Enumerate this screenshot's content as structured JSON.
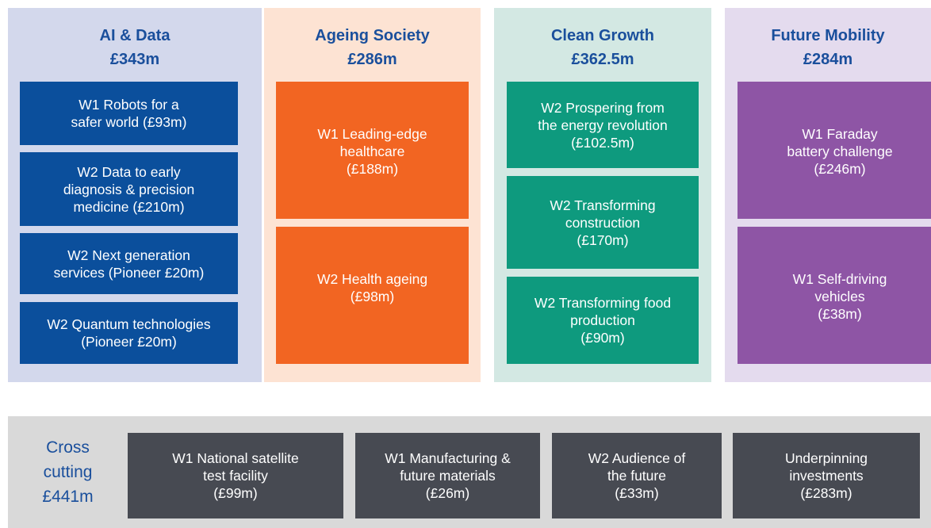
{
  "columns": [
    {
      "title": "AI & Data",
      "amount": "£343m",
      "boxes": [
        [
          "W1 Robots for a",
          "safer world (£93m)"
        ],
        [
          "W2 Data to early",
          "diagnosis & precision",
          "medicine (£210m)"
        ],
        [
          "W2 Next generation",
          "services (Pioneer £20m)"
        ],
        [
          "W2 Quantum technologies",
          "(Pioneer £20m)"
        ]
      ]
    },
    {
      "title": "Ageing Society",
      "amount": "£286m",
      "boxes": [
        [
          "W1 Leading-edge",
          "healthcare",
          "(£188m)"
        ],
        [
          "W2 Health ageing",
          "(£98m)"
        ]
      ]
    },
    {
      "title": "Clean Growth",
      "amount": "£362.5m",
      "boxes": [
        [
          "W2 Prospering from",
          "the energy revolution",
          "(£102.5m)"
        ],
        [
          "W2 Transforming",
          "construction",
          "(£170m)"
        ],
        [
          "W2 Transforming food",
          "production",
          "(£90m)"
        ]
      ]
    },
    {
      "title": "Future Mobility",
      "amount": "£284m",
      "boxes": [
        [
          "W1 Faraday",
          "battery challenge",
          "(£246m)"
        ],
        [
          "W1 Self-driving",
          "vehicles",
          "(£38m)"
        ]
      ]
    }
  ],
  "cross_cutting": {
    "title": [
      "Cross",
      "cutting"
    ],
    "amount": "£441m",
    "boxes": [
      [
        "W1 National satellite",
        "test facility",
        "(£99m)"
      ],
      [
        "W1 Manufacturing &",
        "future materials",
        "(£26m)"
      ],
      [
        "W2 Audience of",
        "the future",
        "(£33m)"
      ],
      [
        "Underpinning",
        "investments",
        "(£283m)"
      ]
    ]
  }
}
